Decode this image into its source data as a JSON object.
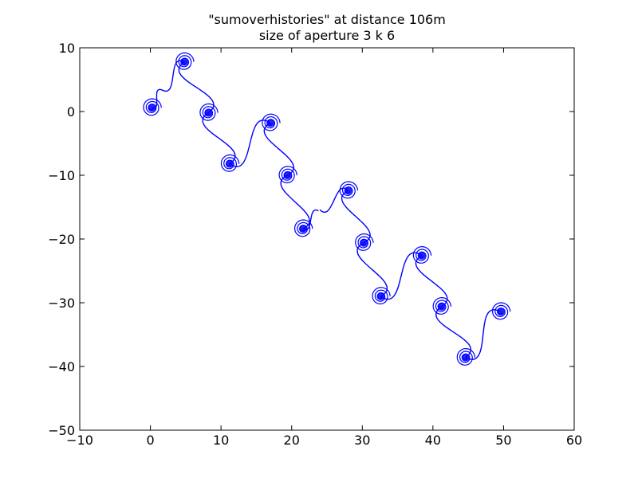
{
  "chart_data": {
    "type": "line",
    "title": "\"sumoverhistories\" at distance 106m",
    "subtitle": "size of aperture 3 k 6",
    "xlabel": "",
    "ylabel": "",
    "xlim": [
      -10,
      60
    ],
    "ylim": [
      -50,
      10
    ],
    "x_ticks": [
      -10,
      0,
      10,
      20,
      30,
      40,
      50,
      60
    ],
    "y_ticks": [
      10,
      0,
      -10,
      -20,
      -30,
      -40,
      -50
    ],
    "x_tick_labels": [
      "−10",
      "0",
      "10",
      "20",
      "30",
      "40",
      "50",
      "60"
    ],
    "y_tick_labels": [
      "10",
      "0",
      "−10",
      "−20",
      "−30",
      "−40",
      "−50"
    ],
    "grid": false,
    "line_color": "#0000ff",
    "spiral_centers": [
      [
        0.2,
        0.6
      ],
      [
        4.8,
        7.8
      ],
      [
        8.2,
        -0.2
      ],
      [
        11.2,
        -8.2
      ],
      [
        17.0,
        -1.8
      ],
      [
        19.4,
        -10.0
      ],
      [
        21.6,
        -18.4
      ],
      [
        28.0,
        -12.4
      ],
      [
        30.2,
        -20.6
      ],
      [
        32.6,
        -29.0
      ],
      [
        38.4,
        -22.6
      ],
      [
        41.2,
        -30.6
      ],
      [
        44.6,
        -38.6
      ],
      [
        49.6,
        -31.4
      ]
    ],
    "series": [
      {
        "segment": 1,
        "x": [
          0.2,
          1.6,
          4.8,
          8.2,
          11.2,
          17.0,
          19.4,
          21.6,
          23.8
        ],
        "y": [
          0.6,
          3.4,
          7.8,
          -0.2,
          -8.2,
          -1.8,
          -10.0,
          -18.4,
          -15.6
        ]
      },
      {
        "segment": 2,
        "x": [
          24.0,
          28.0,
          30.2,
          32.6,
          38.4,
          41.2,
          44.6,
          49.6
        ],
        "y": [
          -15.4,
          -12.4,
          -20.6,
          -29.0,
          -22.6,
          -30.6,
          -38.6,
          -31.4
        ]
      }
    ]
  }
}
